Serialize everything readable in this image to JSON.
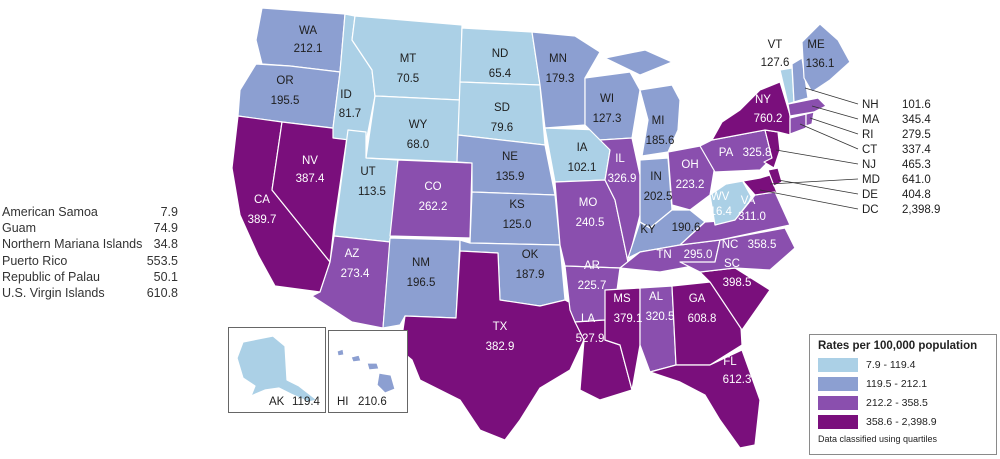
{
  "states": {
    "WA": {
      "abbr": "WA",
      "rate": "212.1"
    },
    "OR": {
      "abbr": "OR",
      "rate": "195.5"
    },
    "CA": {
      "abbr": "CA",
      "rate": "389.7"
    },
    "NV": {
      "abbr": "NV",
      "rate": "387.4"
    },
    "ID": {
      "abbr": "ID",
      "rate": "81.7"
    },
    "MT": {
      "abbr": "MT",
      "rate": "70.5"
    },
    "WY": {
      "abbr": "WY",
      "rate": "68.0"
    },
    "UT": {
      "abbr": "UT",
      "rate": "113.5"
    },
    "AZ": {
      "abbr": "AZ",
      "rate": "273.4"
    },
    "CO": {
      "abbr": "CO",
      "rate": "262.2"
    },
    "NM": {
      "abbr": "NM",
      "rate": "196.5"
    },
    "ND": {
      "abbr": "ND",
      "rate": "65.4"
    },
    "SD": {
      "abbr": "SD",
      "rate": "79.6"
    },
    "NE": {
      "abbr": "NE",
      "rate": "135.9"
    },
    "KS": {
      "abbr": "KS",
      "rate": "125.0"
    },
    "OK": {
      "abbr": "OK",
      "rate": "187.9"
    },
    "TX": {
      "abbr": "TX",
      "rate": "382.9"
    },
    "MN": {
      "abbr": "MN",
      "rate": "179.3"
    },
    "IA": {
      "abbr": "IA",
      "rate": "102.1"
    },
    "MO": {
      "abbr": "MO",
      "rate": "240.5"
    },
    "AR": {
      "abbr": "AR",
      "rate": "225.7"
    },
    "LA": {
      "abbr": "LA",
      "rate": "527.9"
    },
    "WI": {
      "abbr": "WI",
      "rate": "127.3"
    },
    "IL": {
      "abbr": "IL",
      "rate": "326.9"
    },
    "MI": {
      "abbr": "MI",
      "rate": "185.6"
    },
    "IN": {
      "abbr": "IN",
      "rate": "202.5"
    },
    "OH": {
      "abbr": "OH",
      "rate": "223.2"
    },
    "KY": {
      "abbr": "KY",
      "rate": "190.6"
    },
    "TN": {
      "abbr": "TN",
      "rate": "295.0"
    },
    "MS": {
      "abbr": "MS",
      "rate": "379.1"
    },
    "AL": {
      "abbr": "AL",
      "rate": "320.5"
    },
    "GA": {
      "abbr": "GA",
      "rate": "608.8"
    },
    "FL": {
      "abbr": "FL",
      "rate": "612.3"
    },
    "SC": {
      "abbr": "SC",
      "rate": "398.5"
    },
    "NC": {
      "abbr": "NC",
      "rate": "358.5"
    },
    "VA": {
      "abbr": "VA",
      "rate": "311.0"
    },
    "WV": {
      "abbr": "WV",
      "rate": "116.4"
    },
    "PA": {
      "abbr": "PA",
      "rate": "325.8"
    },
    "NY": {
      "abbr": "NY",
      "rate": "760.2"
    },
    "VT": {
      "abbr": "VT",
      "rate": "127.6"
    },
    "ME": {
      "abbr": "ME",
      "rate": "136.1"
    },
    "AK": {
      "abbr": "AK",
      "rate": "119.4"
    },
    "HI": {
      "abbr": "HI",
      "rate": "210.6"
    }
  },
  "northeast_callouts": [
    {
      "abbr": "NH",
      "rate": "101.6"
    },
    {
      "abbr": "MA",
      "rate": "345.4"
    },
    {
      "abbr": "RI",
      "rate": "279.5"
    },
    {
      "abbr": "CT",
      "rate": "337.4"
    },
    {
      "abbr": "NJ",
      "rate": "465.3"
    },
    {
      "abbr": "MD",
      "rate": "641.0"
    },
    {
      "abbr": "DE",
      "rate": "404.8"
    },
    {
      "abbr": "DC",
      "rate": "2,398.9"
    }
  ],
  "territories": [
    {
      "name": "American Samoa",
      "rate": "7.9"
    },
    {
      "name": "Guam",
      "rate": "74.9"
    },
    {
      "name": "Northern Mariana Islands",
      "rate": "34.8"
    },
    {
      "name": "Puerto Rico",
      "rate": "553.5"
    },
    {
      "name": "Republic of Palau",
      "rate": "50.1"
    },
    {
      "name": "U.S. Virgin Islands",
      "rate": "610.8"
    }
  ],
  "legend": {
    "title": "Rates per 100,000 population",
    "items": [
      {
        "range": "7.9 - 119.4",
        "color": "#abd0e6"
      },
      {
        "range": "119.5 - 212.1",
        "color": "#8c9fd1"
      },
      {
        "range": "212.2 - 358.5",
        "color": "#8a4fae"
      },
      {
        "range": "358.6 - 2,398.9",
        "color": "#7a0f7c"
      }
    ],
    "note": "Data classified using quartiles"
  }
}
